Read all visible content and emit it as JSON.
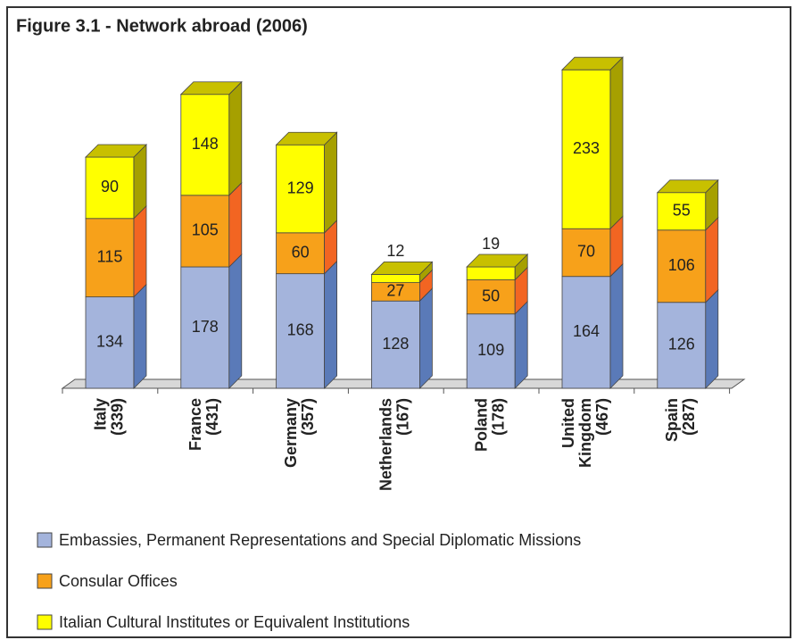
{
  "chart_data": {
    "type": "bar3d_stacked",
    "title": "Figure 3.1 - Network abroad (2006)",
    "categories": [
      [
        "Italy",
        "(339)"
      ],
      [
        "France",
        "(431)"
      ],
      [
        "Germany",
        "(357)"
      ],
      [
        "Netherlands",
        "(167)"
      ],
      [
        "Poland",
        "(178)"
      ],
      [
        "United",
        "Kingdom",
        "(467)"
      ],
      [
        "Spain",
        "(287)"
      ]
    ],
    "series": [
      {
        "name": "Embassies, Permanent Representations and Special Diplomatic Missions",
        "color": "#a4b4dc",
        "values": [
          134,
          178,
          168,
          128,
          109,
          164,
          126
        ]
      },
      {
        "name": "Consular Offices",
        "color": "#f7a11a",
        "values": [
          115,
          105,
          60,
          27,
          50,
          70,
          106
        ]
      },
      {
        "name": "Italian Cultural Institutes or Equivalent Institutions",
        "color": "#ffff00",
        "values": [
          90,
          148,
          129,
          12,
          19,
          233,
          55
        ]
      }
    ],
    "legend": "bottom"
  }
}
